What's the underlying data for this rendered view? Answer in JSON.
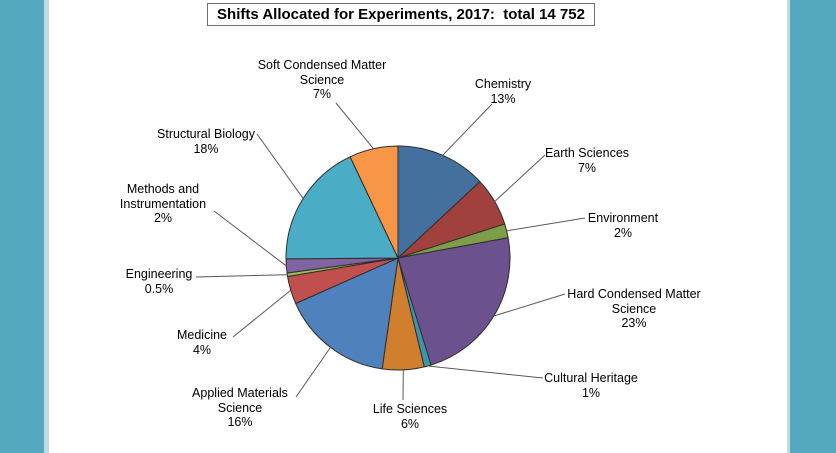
{
  "chart_data": {
    "type": "pie",
    "title": "Shifts Allocated for Experiments, 2017:  total 14 752",
    "year": "2017",
    "total_label": "total 14 752",
    "total": 14752,
    "start_angle": "top",
    "direction": "clockwise",
    "legend": "none",
    "labels_style": "outside category name + percent with leader lines",
    "slices": [
      {
        "label": "Chemistry",
        "pct": 13,
        "pct_label": "13%",
        "color": "#44709D"
      },
      {
        "label": "Earth Sciences",
        "pct": 7,
        "pct_label": "7%",
        "color": "#A1413E"
      },
      {
        "label": "Environment",
        "pct": 2,
        "pct_label": "2%",
        "color": "#7E9D49"
      },
      {
        "label": "Hard Condensed Matter Science",
        "pct": 23,
        "pct_label": "23%",
        "color": "#6C518F"
      },
      {
        "label": "Cultural Heritage",
        "pct": 1,
        "pct_label": "1%",
        "color": "#3D95AB"
      },
      {
        "label": "Life Sciences",
        "pct": 6,
        "pct_label": "6%",
        "color": "#D07F2E"
      },
      {
        "label": "Applied Materials Science",
        "pct": 16,
        "pct_label": "16%",
        "color": "#4F81BD"
      },
      {
        "label": "Medicine",
        "pct": 4,
        "pct_label": "4%",
        "color": "#C0504D"
      },
      {
        "label": "Engineering",
        "pct": 0.5,
        "pct_label": "0.5%",
        "color": "#9BBB59"
      },
      {
        "label": "Methods and Instrumentation",
        "pct": 2,
        "pct_label": "2%",
        "color": "#8064A2"
      },
      {
        "label": "Structural Biology",
        "pct": 18,
        "pct_label": "18%",
        "color": "#4BACC6"
      },
      {
        "label": "Soft Condensed Matter Science",
        "pct": 7,
        "pct_label": "7%",
        "color": "#F79646"
      }
    ],
    "colors": {
      "panel_teal": "#55A9BF",
      "panel_teal_light": "#BFDCE6",
      "slice_border": "#2E2E2E",
      "leader_line": "#595959",
      "title_border": "#6E6E6E"
    }
  }
}
